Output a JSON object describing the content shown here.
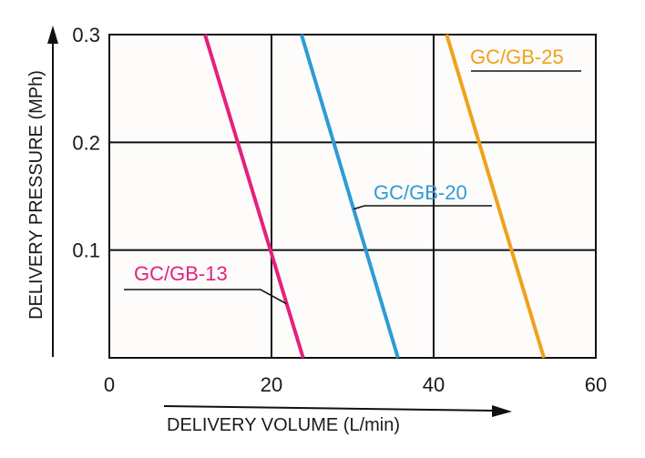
{
  "chart_data": {
    "type": "line",
    "xlabel": "DELIVERY VOLUME (L/min)",
    "ylabel": "DELIVERY PRESSURE (MPh)",
    "xlim": [
      0,
      60
    ],
    "ylim": [
      0,
      0.3
    ],
    "x_ticks": [
      "0",
      "20",
      "40",
      "60"
    ],
    "y_ticks": [
      "0.1",
      "0.2",
      "0.3"
    ],
    "x_tick_values": [
      0,
      20,
      40,
      60
    ],
    "y_tick_values": [
      0.1,
      0.2,
      0.3
    ],
    "grid": true,
    "legend": "inline labels",
    "series": [
      {
        "name": "GC/GB-13",
        "color": "#e6207e",
        "x": [
          11.8,
          23.9
        ],
        "y": [
          0.3,
          0.0
        ]
      },
      {
        "name": "GC/GB-20",
        "color": "#2e9bd6",
        "x": [
          23.7,
          35.6
        ],
        "y": [
          0.3,
          0.0
        ]
      },
      {
        "name": "GC/GB-25",
        "color": "#f0a11c",
        "x": [
          41.6,
          53.6
        ],
        "y": [
          0.3,
          0.0
        ]
      }
    ]
  }
}
